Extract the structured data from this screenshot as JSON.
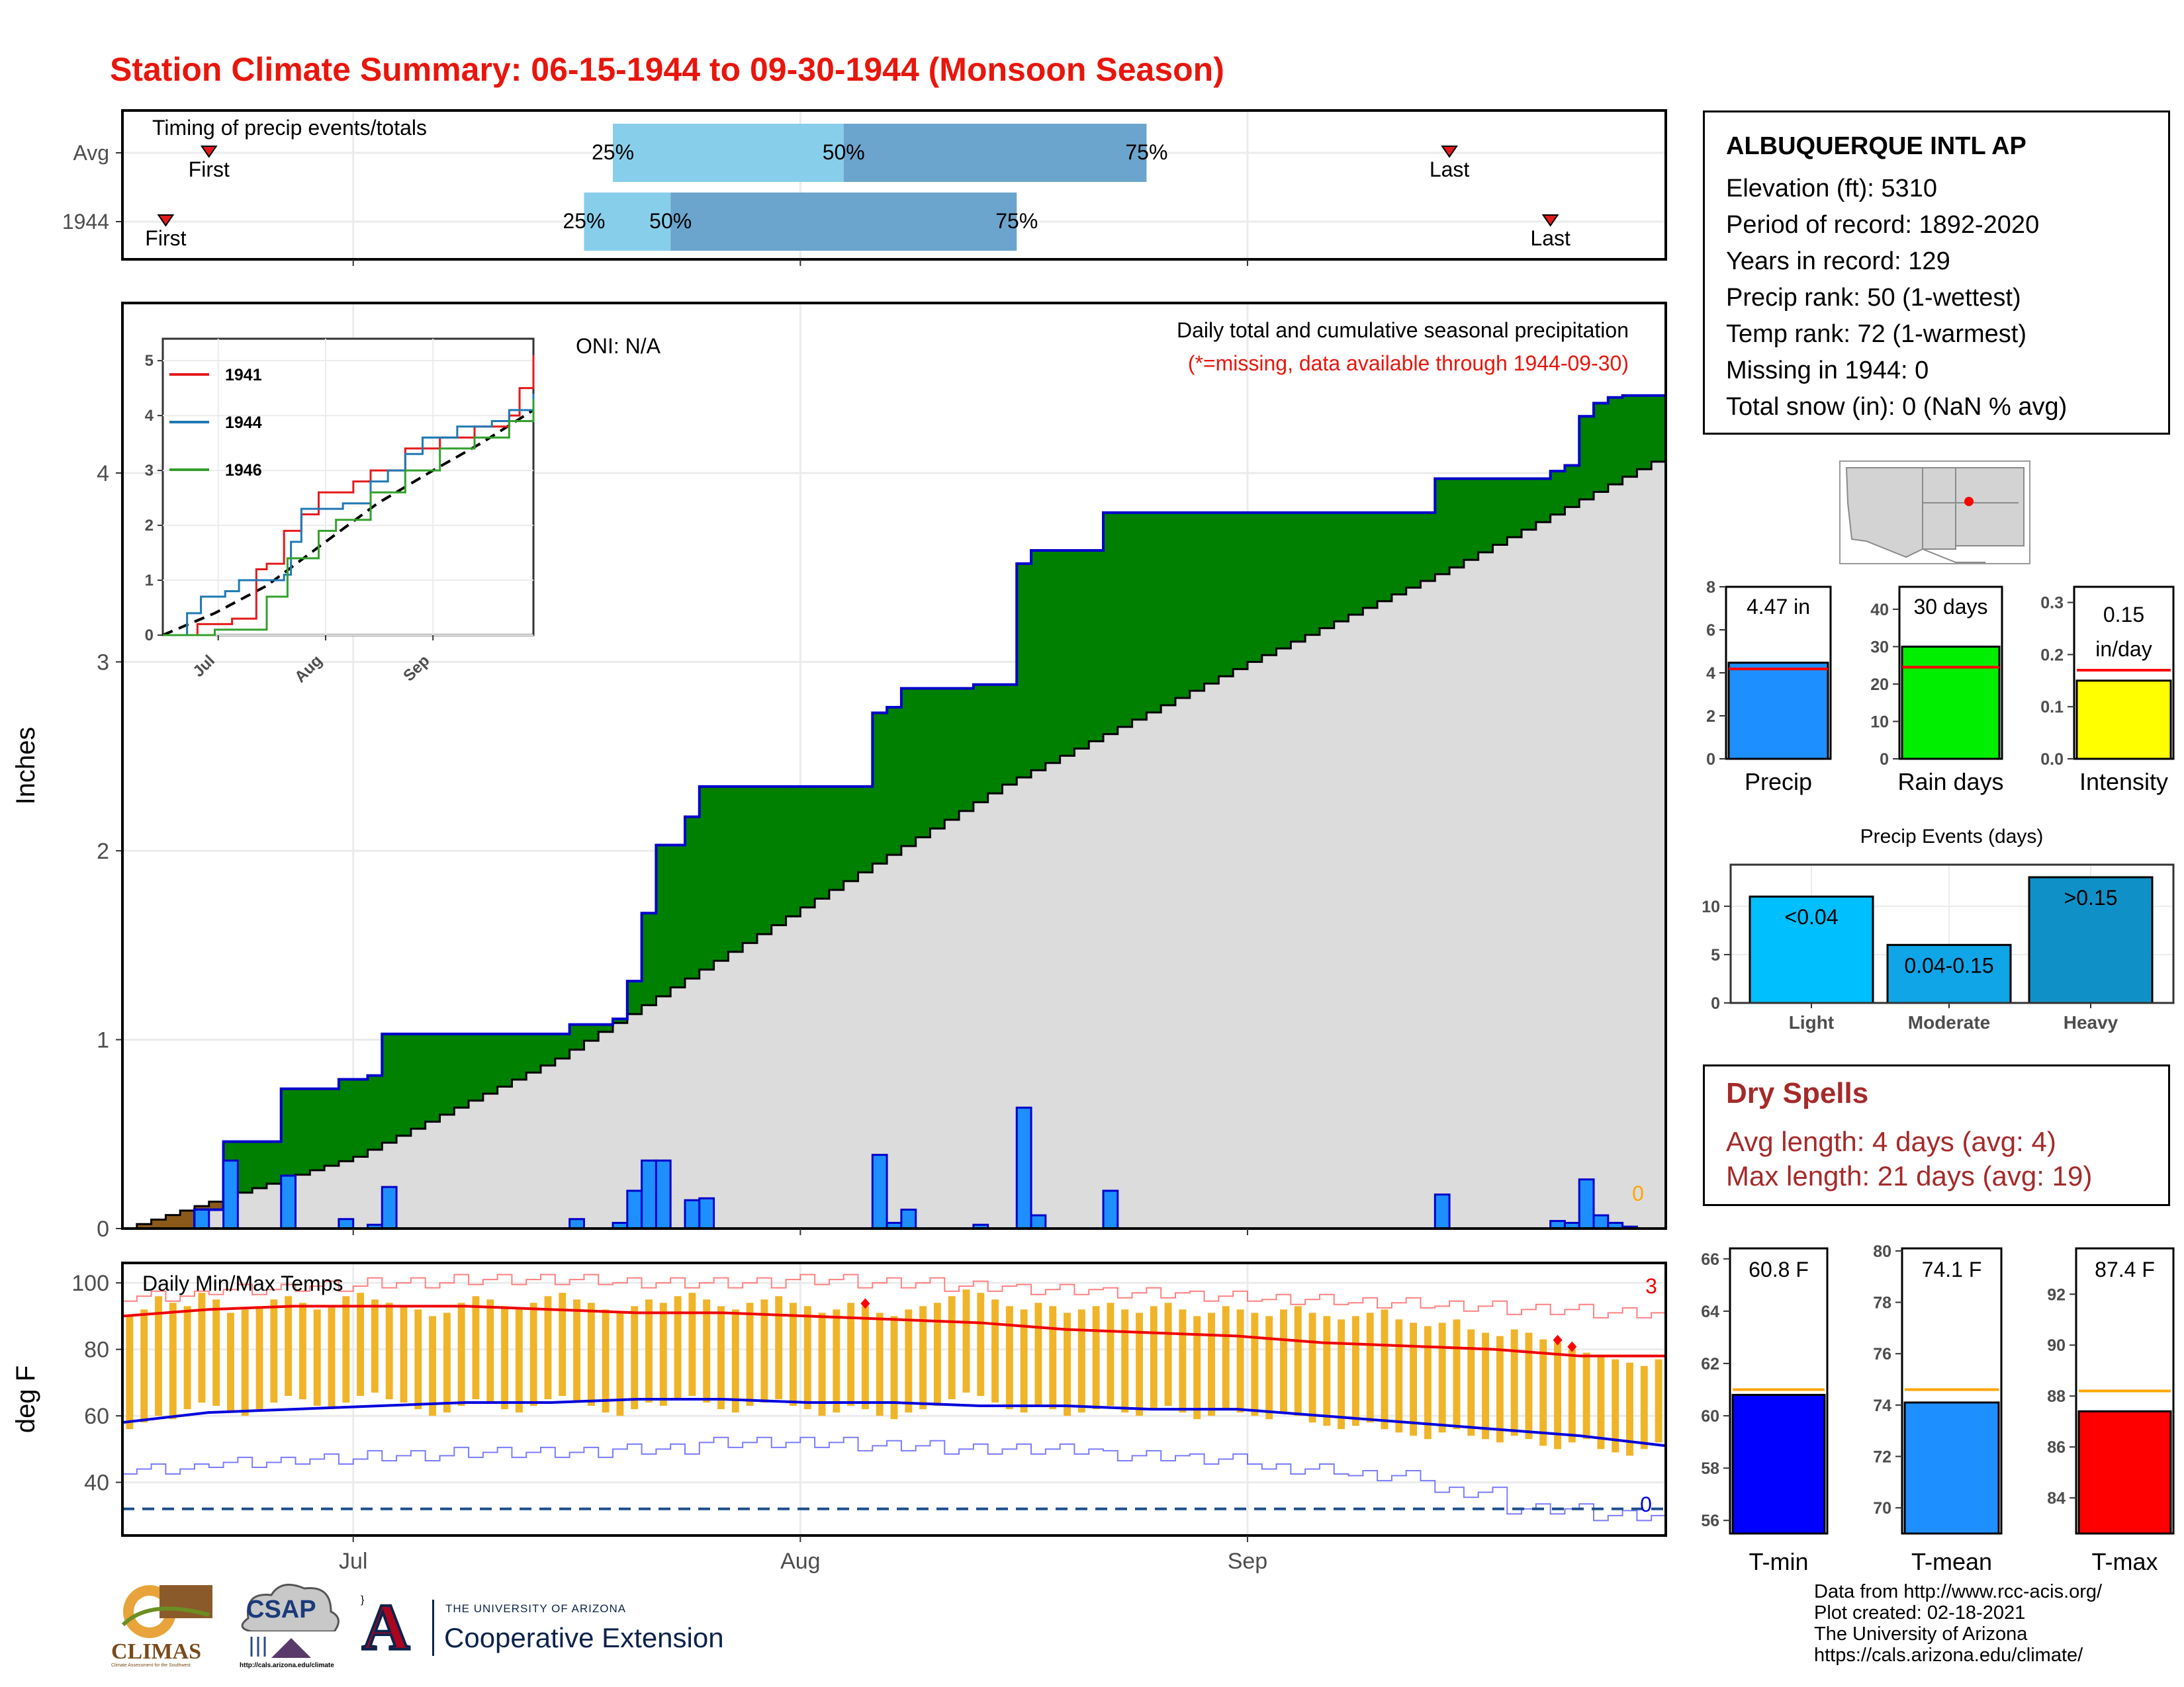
{
  "title": "Station Climate Summary: 06-15-1944 to 09-30-1944 (Monsoon Season)",
  "colors": {
    "title": "#e8160c",
    "precip_bar": "#1e8fff",
    "bar_outline": "#0000cc",
    "cum_fill_above": "#008000",
    "avg_fill": "#dcdcdc",
    "deficit_fill": "#8b5a1a",
    "light_blue": "#87ceeb",
    "steel_blue": "#6ba4cc",
    "temp_bar": "#f0b429",
    "avg_max_line": "#ee0000",
    "avg_min_line": "#0000dd"
  },
  "station": {
    "name": "ALBUQUERQUE INTL AP",
    "lines": [
      "Elevation (ft): 5310",
      "Period of record: 1892-2020",
      "Years in record: 129",
      "Precip rank: 50 (1-wettest)",
      "Temp rank: 72 (1-warmest)",
      "Missing in 1944: 0",
      "Total snow (in): 0 (NaN % avg)"
    ]
  },
  "dry_spells": {
    "title": "Dry Spells",
    "avg_line": "Avg length: 4 days (avg: 4)",
    "max_line": "Max length: 21 days (avg: 19)"
  },
  "footer": {
    "lines": [
      "Data from http://www.rcc-acis.org/",
      "Plot created: 02-18-2021",
      "The University of Arizona",
      "https://cals.arizona.edu/climate/"
    ]
  },
  "logos": {
    "climas": "CLIMAS",
    "climas_tagline": "Climate Assessment for the Southwest",
    "csap": "CSAP",
    "csap_url": "http://cals.arizona.edu/climate",
    "ua_letter": "A",
    "ua_line1": "THE UNIVERSITY OF ARIZONA",
    "ua_line2": "Cooperative Extension"
  },
  "chart_data": [
    {
      "id": "timing",
      "type": "bar",
      "text": "Timing of precip events/totals",
      "rows": [
        {
          "label": "Avg",
          "first": "06-21",
          "last": "09-15",
          "p25": "07-19",
          "p50": "08-04",
          "p75": "08-25"
        },
        {
          "label": "1944",
          "first": "06-18",
          "last": "09-22",
          "p25": "07-17",
          "p50": "07-23",
          "p75": "08-16"
        }
      ],
      "marker_labels": {
        "first": "First",
        "last": "Last"
      },
      "pct_labels": [
        "25%",
        "50%",
        "75%"
      ]
    },
    {
      "id": "precip",
      "type": "area",
      "ylabel": "Inches",
      "ylim": [
        0,
        4.9
      ],
      "yticks": [
        "0",
        "1",
        "2",
        "3",
        "4"
      ],
      "xticks": [
        "Jul",
        "Aug",
        "Sep"
      ],
      "oni": "ONI: N/A",
      "caption": "Daily total and cumulative seasonal precipitation",
      "missing_note": "(*=missing, data available through 1944-09-30)",
      "missing_count": "0",
      "start": "06-15",
      "daily": [
        {
          "date": "06-20",
          "value": 0.1
        },
        {
          "date": "06-22",
          "value": 0.36
        },
        {
          "date": "06-26",
          "value": 0.28
        },
        {
          "date": "06-30",
          "value": 0.05
        },
        {
          "date": "07-02",
          "value": 0.02
        },
        {
          "date": "07-03",
          "value": 0.22
        },
        {
          "date": "07-16",
          "value": 0.05
        },
        {
          "date": "07-19",
          "value": 0.03
        },
        {
          "date": "07-20",
          "value": 0.2
        },
        {
          "date": "07-21",
          "value": 0.36
        },
        {
          "date": "07-22",
          "value": 0.36
        },
        {
          "date": "07-24",
          "value": 0.15
        },
        {
          "date": "07-25",
          "value": 0.16
        },
        {
          "date": "08-06",
          "value": 0.39
        },
        {
          "date": "08-07",
          "value": 0.03
        },
        {
          "date": "08-08",
          "value": 0.1
        },
        {
          "date": "08-13",
          "value": 0.02
        },
        {
          "date": "08-16",
          "value": 0.64
        },
        {
          "date": "08-17",
          "value": 0.07
        },
        {
          "date": "08-22",
          "value": 0.2
        },
        {
          "date": "09-14",
          "value": 0.18
        },
        {
          "date": "09-22",
          "value": 0.04
        },
        {
          "date": "09-23",
          "value": 0.03
        },
        {
          "date": "09-24",
          "value": 0.26
        },
        {
          "date": "09-25",
          "value": 0.07
        },
        {
          "date": "09-26",
          "value": 0.03
        },
        {
          "date": "09-27",
          "value": 0.01
        }
      ],
      "avg_cumulative": [
        {
          "date": "06-15",
          "value": 0.0
        },
        {
          "date": "07-01",
          "value": 0.38
        },
        {
          "date": "07-15",
          "value": 0.9
        },
        {
          "date": "08-01",
          "value": 1.7
        },
        {
          "date": "08-15",
          "value": 2.35
        },
        {
          "date": "09-01",
          "value": 3.0
        },
        {
          "date": "09-15",
          "value": 3.5
        },
        {
          "date": "09-30",
          "value": 4.1
        }
      ]
    },
    {
      "id": "inset",
      "type": "line",
      "ylim": [
        0,
        5.4
      ],
      "yticks": [
        "0",
        "1",
        "2",
        "3",
        "4",
        "5"
      ],
      "xticks": [
        "Jul",
        "Aug",
        "Sep"
      ],
      "series": [
        {
          "name": "1941",
          "color": "#e31a1c",
          "values": [
            [
              0,
              0
            ],
            [
              10,
              0.2
            ],
            [
              20,
              0.3
            ],
            [
              27,
              1.2
            ],
            [
              30,
              1.3
            ],
            [
              35,
              1.9
            ],
            [
              40,
              2.2
            ],
            [
              45,
              2.6
            ],
            [
              55,
              2.8
            ],
            [
              60,
              3.0
            ],
            [
              70,
              3.4
            ],
            [
              80,
              3.6
            ],
            [
              90,
              3.8
            ],
            [
              100,
              4.0
            ],
            [
              103,
              4.5
            ],
            [
              107,
              5.1
            ]
          ]
        },
        {
          "name": "1944",
          "color": "#1f78b4",
          "values": [
            [
              0,
              0
            ],
            [
              7,
              0.4
            ],
            [
              11,
              0.7
            ],
            [
              18,
              0.8
            ],
            [
              22,
              1.0
            ],
            [
              35,
              1.1
            ],
            [
              37,
              1.7
            ],
            [
              40,
              2.3
            ],
            [
              52,
              2.4
            ],
            [
              60,
              2.8
            ],
            [
              65,
              3.0
            ],
            [
              70,
              3.3
            ],
            [
              75,
              3.6
            ],
            [
              85,
              3.8
            ],
            [
              95,
              3.9
            ],
            [
              100,
              4.1
            ],
            [
              107,
              4.4
            ]
          ]
        },
        {
          "name": "1946",
          "color": "#33a02c",
          "values": [
            [
              0,
              0
            ],
            [
              15,
              0.1
            ],
            [
              30,
              0.7
            ],
            [
              36,
              1.4
            ],
            [
              45,
              1.9
            ],
            [
              50,
              2.1
            ],
            [
              60,
              2.6
            ],
            [
              70,
              3.0
            ],
            [
              80,
              3.4
            ],
            [
              90,
              3.6
            ],
            [
              100,
              3.9
            ],
            [
              107,
              4.3
            ]
          ]
        }
      ],
      "avg_values": [
        [
          0,
          0
        ],
        [
          15,
          0.4
        ],
        [
          30,
          0.9
        ],
        [
          47,
          1.7
        ],
        [
          62,
          2.4
        ],
        [
          78,
          3.0
        ],
        [
          92,
          3.5
        ],
        [
          107,
          4.1
        ]
      ]
    },
    {
      "id": "temps",
      "type": "bar",
      "text": "Daily Min/Max Temps",
      "ylabel": "deg F",
      "ylim": [
        24,
        106
      ],
      "yticks": [
        "40",
        "60",
        "80",
        "100"
      ],
      "xticks": [
        "Jul",
        "Aug",
        "Sep"
      ],
      "record_high_count": "3",
      "record_low_count": "0",
      "freeze_line": 32,
      "record_high_days": [
        "08-05",
        "09-22",
        "09-23"
      ],
      "max_temps": [
        90,
        92,
        96,
        94,
        93,
        97,
        95,
        91,
        92,
        93,
        95,
        96,
        94,
        92,
        93,
        96,
        97,
        95,
        94,
        93,
        92,
        90,
        91,
        94,
        96,
        95,
        93,
        92,
        94,
        96,
        97,
        95,
        94,
        92,
        91,
        93,
        95,
        94,
        96,
        97,
        95,
        93,
        92,
        94,
        95,
        96,
        94,
        93,
        91,
        92,
        94,
        93,
        91,
        90,
        92,
        93,
        94,
        96,
        98,
        97,
        95,
        93,
        92,
        94,
        93,
        91,
        92,
        93,
        94,
        92,
        91,
        93,
        94,
        92,
        90,
        91,
        93,
        92,
        91,
        90,
        92,
        93,
        91,
        90,
        89,
        90,
        91,
        92,
        89,
        88,
        87,
        88,
        89,
        86,
        85,
        84,
        86,
        85,
        83,
        82,
        80,
        79,
        78,
        77,
        76,
        75,
        77
      ],
      "min_temps": [
        56,
        58,
        60,
        59,
        62,
        64,
        63,
        61,
        60,
        62,
        64,
        66,
        65,
        63,
        62,
        64,
        66,
        67,
        65,
        64,
        62,
        60,
        61,
        63,
        65,
        64,
        62,
        61,
        63,
        65,
        66,
        64,
        63,
        61,
        60,
        62,
        64,
        63,
        65,
        66,
        64,
        62,
        61,
        63,
        64,
        65,
        63,
        62,
        60,
        61,
        63,
        62,
        60,
        59,
        61,
        62,
        63,
        65,
        67,
        66,
        64,
        62,
        61,
        63,
        62,
        60,
        61,
        62,
        63,
        61,
        60,
        62,
        63,
        61,
        59,
        60,
        62,
        61,
        60,
        59,
        61,
        60,
        58,
        57,
        56,
        57,
        58,
        56,
        55,
        54,
        53,
        55,
        56,
        54,
        53,
        52,
        54,
        53,
        51,
        50,
        52,
        53,
        50,
        49,
        48,
        50,
        52
      ],
      "avg_max": [
        90,
        92,
        93,
        93,
        93,
        92,
        91,
        91,
        90,
        89,
        88,
        86,
        85,
        84,
        82,
        81,
        80,
        78,
        78
      ],
      "avg_min": [
        58,
        61,
        62,
        63,
        64,
        64,
        65,
        65,
        64,
        64,
        63,
        63,
        62,
        62,
        60,
        58,
        56,
        54,
        51
      ],
      "record_max": [
        96,
        98,
        99,
        100,
        101,
        101,
        100,
        100,
        101,
        100,
        99,
        98,
        97,
        96,
        95,
        94,
        93,
        92,
        91
      ],
      "record_min": [
        44,
        46,
        47,
        48,
        49,
        49,
        50,
        52,
        52,
        51,
        50,
        50,
        48,
        47,
        44,
        42,
        37,
        32,
        30
      ]
    },
    {
      "id": "precip_summary",
      "type": "bar",
      "panels": [
        {
          "label": "Precip",
          "value": 4.47,
          "text": "4.47 in",
          "avg": 4.18,
          "ylim": [
            0,
            8
          ],
          "yticks": [
            "0",
            "2",
            "4",
            "6",
            "8"
          ],
          "color": "#1e8fff"
        },
        {
          "label": "Rain days",
          "value": 30,
          "text": "30 days",
          "avg": 24.5,
          "ylim": [
            0,
            46
          ],
          "yticks": [
            "0",
            "10",
            "20",
            "30",
            "40"
          ],
          "color": "#00ee00"
        },
        {
          "label": "Intensity",
          "value": 0.15,
          "text": "0.15 in/day",
          "avg": 0.17,
          "ylim": [
            0,
            0.33
          ],
          "yticks": [
            "0.0",
            "0.1",
            "0.2",
            "0.3"
          ],
          "color": "#ffff00"
        }
      ]
    },
    {
      "id": "precip_events",
      "type": "bar",
      "title": "Precip Events (days)",
      "categories": [
        "Light",
        "Moderate",
        "Heavy"
      ],
      "values": [
        11,
        6,
        13
      ],
      "bar_labels": [
        "<0.04",
        "0.04-0.15",
        ">0.15"
      ],
      "colors": [
        "#00bfff",
        "#0fa5e6",
        "#0f91c8"
      ],
      "ylim": [
        0,
        14.3
      ],
      "yticks": [
        "0",
        "5",
        "10"
      ]
    },
    {
      "id": "temp_summary",
      "type": "bar",
      "panels": [
        {
          "label": "T-min",
          "value": 60.8,
          "text": "60.8 F",
          "avg": 61.0,
          "ylim": [
            55.5,
            66.4
          ],
          "yticks": [
            "56",
            "58",
            "60",
            "62",
            "64",
            "66"
          ],
          "color": "#0000ff"
        },
        {
          "label": "T-mean",
          "value": 74.1,
          "text": "74.1 F",
          "avg": 74.6,
          "ylim": [
            69.0,
            80.1
          ],
          "yticks": [
            "70",
            "72",
            "74",
            "76",
            "78",
            "80"
          ],
          "color": "#1e8fff"
        },
        {
          "label": "T-max",
          "value": 87.4,
          "text": "87.4 F",
          "avg": 88.2,
          "ylim": [
            82.6,
            93.8
          ],
          "yticks": [
            "84",
            "86",
            "88",
            "90",
            "92"
          ],
          "color": "#ff0000"
        }
      ]
    }
  ]
}
